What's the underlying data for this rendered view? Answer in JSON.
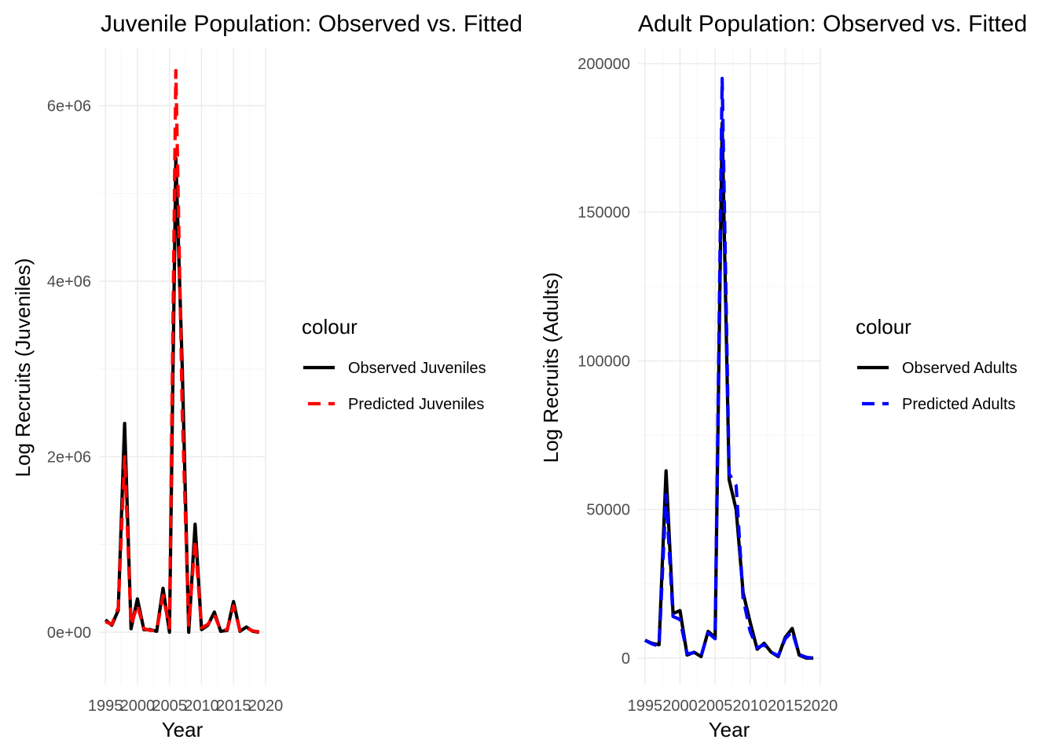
{
  "chart_data": [
    {
      "type": "line",
      "title": "Juvenile Population: Observed vs. Fitted",
      "xlabel": "Year",
      "ylabel": "Log Recruits (Juveniles)",
      "xlim": [
        1994,
        2020
      ],
      "ylim": [
        -600000,
        6650000
      ],
      "x_ticks": [
        1995,
        2000,
        2005,
        2010,
        2015,
        2020
      ],
      "x_tick_labels": [
        "1995",
        "2000",
        "2005",
        "2010",
        "2015",
        "2020"
      ],
      "y_ticks": [
        0,
        2000000,
        4000000,
        6000000
      ],
      "y_tick_labels": [
        "0e+00",
        "2e+06",
        "4e+06",
        "6e+06"
      ],
      "legend": {
        "title": "colour",
        "position": "right"
      },
      "x": [
        1995,
        1996,
        1997,
        1998,
        1999,
        2000,
        2001,
        2002,
        2003,
        2004,
        2005,
        2006,
        2007,
        2008,
        2009,
        2010,
        2011,
        2012,
        2013,
        2014,
        2015,
        2016,
        2017,
        2018,
        2019
      ],
      "series": [
        {
          "name": "Observed Juveniles",
          "color": "#000000",
          "dash": "solid",
          "values": [
            140000,
            80000,
            250000,
            2380000,
            40000,
            380000,
            30000,
            30000,
            10000,
            500000,
            0,
            5400000,
            3000000,
            0,
            1230000,
            30000,
            80000,
            230000,
            10000,
            20000,
            350000,
            10000,
            60000,
            10000,
            0
          ]
        },
        {
          "name": "Predicted Juveniles",
          "color": "#ff0000",
          "dash": "dashed",
          "values": [
            120000,
            90000,
            280000,
            2000000,
            80000,
            310000,
            40000,
            20000,
            20000,
            420000,
            50000,
            6400000,
            2500000,
            80000,
            1050000,
            50000,
            90000,
            200000,
            20000,
            30000,
            300000,
            20000,
            50000,
            15000,
            5000
          ]
        }
      ]
    },
    {
      "type": "line",
      "title": "Adult Population: Observed vs. Fitted",
      "xlabel": "Year",
      "ylabel": "Log Recruits (Adults)",
      "xlim": [
        1994,
        2020
      ],
      "ylim": [
        -9000,
        205000
      ],
      "x_ticks": [
        1995,
        2000,
        2005,
        2010,
        2015,
        2020
      ],
      "x_tick_labels": [
        "1995",
        "2000",
        "2005",
        "2010",
        "2015",
        "2020"
      ],
      "y_ticks": [
        0,
        50000,
        100000,
        150000,
        200000
      ],
      "y_tick_labels": [
        "0",
        "50000",
        "100000",
        "150000",
        "200000"
      ],
      "legend": {
        "title": "colour",
        "position": "right"
      },
      "x": [
        1995,
        1996,
        1997,
        1998,
        1999,
        2000,
        2001,
        2002,
        2003,
        2004,
        2005,
        2006,
        2007,
        2008,
        2009,
        2010,
        2011,
        2012,
        2013,
        2014,
        2015,
        2016,
        2017,
        2018,
        2019
      ],
      "series": [
        {
          "name": "Observed Adults",
          "color": "#000000",
          "dash": "solid",
          "values": [
            6000,
            5000,
            4500,
            63000,
            15000,
            16000,
            1000,
            2000,
            500,
            9000,
            7000,
            180000,
            60000,
            50000,
            22000,
            12000,
            3000,
            5000,
            2000,
            500,
            7000,
            10000,
            1000,
            0,
            0
          ]
        },
        {
          "name": "Predicted Adults",
          "color": "#0000ff",
          "dash": "dashed",
          "values": [
            6000,
            4800,
            4000,
            55000,
            14000,
            13000,
            1500,
            1800,
            800,
            8500,
            6500,
            195000,
            62000,
            58000,
            20000,
            9000,
            3500,
            4500,
            2000,
            800,
            6500,
            9000,
            1200,
            300,
            0
          ]
        }
      ]
    }
  ]
}
